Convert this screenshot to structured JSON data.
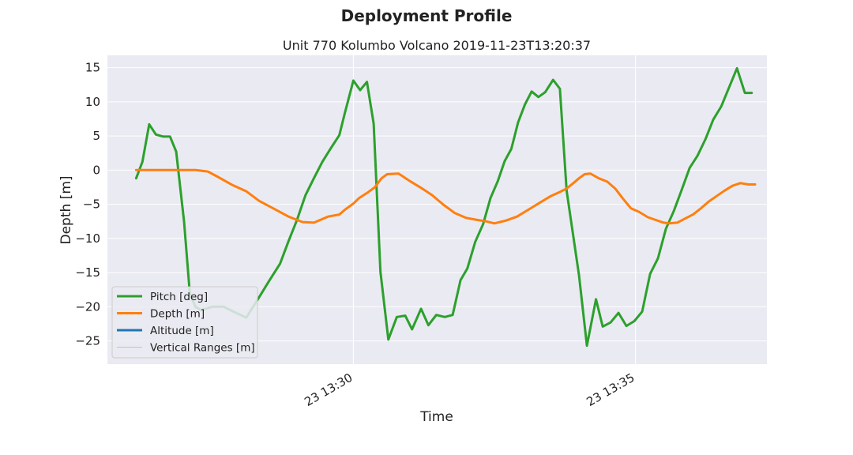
{
  "chart_data": {
    "type": "line",
    "suptitle": "Deployment Profile",
    "title": "Unit 770 Kolumbo Volcano 2019-11-23T13:20:37",
    "xlabel": "Time",
    "ylabel": "Depth [m]",
    "x_unit": "minutes past 13:00 on 2019-11-23",
    "xlim": [
      25.64,
      37.33
    ],
    "ylim": [
      -28.4,
      16.8
    ],
    "yticks": [
      15,
      10,
      5,
      0,
      -5,
      -10,
      -15,
      -20,
      -25
    ],
    "xticks": [
      {
        "value": 30,
        "label": "23 13:30"
      },
      {
        "value": 35,
        "label": "23 13:35"
      }
    ],
    "grid": true,
    "legend_position": "lower-left",
    "series": [
      {
        "name": "Pitch [deg]",
        "color": "#2ca02c",
        "x": [
          26.15,
          26.26,
          26.38,
          26.5,
          26.63,
          26.75,
          26.86,
          27.0,
          27.1,
          27.2,
          27.3,
          27.5,
          27.7,
          27.9,
          28.0,
          28.1,
          28.3,
          28.5,
          28.7,
          28.85,
          29.0,
          29.15,
          29.3,
          29.45,
          29.6,
          29.75,
          29.85,
          30.0,
          30.12,
          30.24,
          30.36,
          30.48,
          30.62,
          30.77,
          30.92,
          31.04,
          31.2,
          31.33,
          31.47,
          31.62,
          31.76,
          31.9,
          32.02,
          32.16,
          32.3,
          32.43,
          32.56,
          32.68,
          32.8,
          32.92,
          33.04,
          33.16,
          33.28,
          33.4,
          33.54,
          33.66,
          33.78,
          34.0,
          34.14,
          34.3,
          34.42,
          34.56,
          34.7,
          34.84,
          34.98,
          35.12,
          35.26,
          35.4,
          35.54,
          35.68,
          35.82,
          35.96,
          36.1,
          36.24,
          36.38,
          36.52,
          36.66,
          36.8,
          36.94,
          37.06
        ],
        "y": [
          -1.2,
          1.2,
          6.7,
          5.2,
          4.9,
          4.9,
          2.7,
          -7.6,
          -18,
          -20,
          -20.5,
          -20,
          -20,
          -20.8,
          -21.2,
          -21.6,
          -19,
          -16.3,
          -13.7,
          -10.4,
          -7.3,
          -3.7,
          -1.2,
          1.2,
          3.2,
          5.1,
          8.4,
          13.1,
          11.7,
          12.9,
          6.8,
          -14.9,
          -24.8,
          -21.5,
          -21.3,
          -23.3,
          -20.3,
          -22.7,
          -21.2,
          -21.5,
          -21.2,
          -16.1,
          -14.4,
          -10.5,
          -7.9,
          -4.1,
          -1.6,
          1.3,
          3.1,
          7,
          9.6,
          11.5,
          10.7,
          11.4,
          13.2,
          11.9,
          -3,
          -15.4,
          -25.7,
          -18.9,
          -22.9,
          -22.3,
          -20.9,
          -22.8,
          -22.1,
          -20.7,
          -15.2,
          -12.9,
          -8.6,
          -6,
          -2.9,
          0.3,
          2.1,
          4.5,
          7.4,
          9.3,
          12.1,
          14.9,
          11.3,
          11.3
        ]
      },
      {
        "name": "Depth [m]",
        "color": "#ff7f0e",
        "x": [
          26.15,
          26.5,
          26.9,
          27.2,
          27.42,
          27.6,
          27.86,
          28.1,
          28.33,
          28.6,
          28.85,
          29.1,
          29.3,
          29.55,
          29.75,
          29.85,
          30.0,
          30.1,
          30.25,
          30.38,
          30.5,
          30.6,
          30.8,
          31.0,
          31.2,
          31.4,
          31.6,
          31.8,
          32.0,
          32.2,
          32.35,
          32.5,
          32.7,
          32.9,
          33.1,
          33.3,
          33.5,
          33.66,
          33.78,
          33.9,
          34.0,
          34.1,
          34.2,
          34.35,
          34.5,
          34.64,
          34.78,
          34.92,
          35.06,
          35.22,
          35.36,
          35.5,
          35.6,
          35.74,
          35.88,
          36.02,
          36.16,
          36.3,
          36.44,
          36.58,
          36.72,
          36.86,
          37.0,
          37.12
        ],
        "y": [
          0,
          0,
          0,
          0,
          -0.2,
          -1,
          -2.2,
          -3.1,
          -4.5,
          -5.7,
          -6.8,
          -7.6,
          -7.7,
          -6.8,
          -6.5,
          -5.8,
          -4.9,
          -4.1,
          -3.3,
          -2.5,
          -1.2,
          -0.6,
          -0.5,
          -1.6,
          -2.6,
          -3.7,
          -5.1,
          -6.3,
          -7,
          -7.3,
          -7.5,
          -7.8,
          -7.4,
          -6.8,
          -5.8,
          -4.8,
          -3.8,
          -3.2,
          -2.7,
          -1.9,
          -1.2,
          -0.6,
          -0.5,
          -1.2,
          -1.7,
          -2.7,
          -4.2,
          -5.6,
          -6.1,
          -6.9,
          -7.3,
          -7.7,
          -7.8,
          -7.7,
          -7.1,
          -6.5,
          -5.6,
          -4.6,
          -3.8,
          -3,
          -2.3,
          -1.9,
          -2.1,
          -2.1
        ]
      },
      {
        "name": "Altitude [m]",
        "color": "#1f77b4",
        "x": [],
        "y": []
      },
      {
        "name": "Vertical Ranges [m]",
        "color": "#aec7e8",
        "x": [],
        "y": []
      }
    ]
  }
}
